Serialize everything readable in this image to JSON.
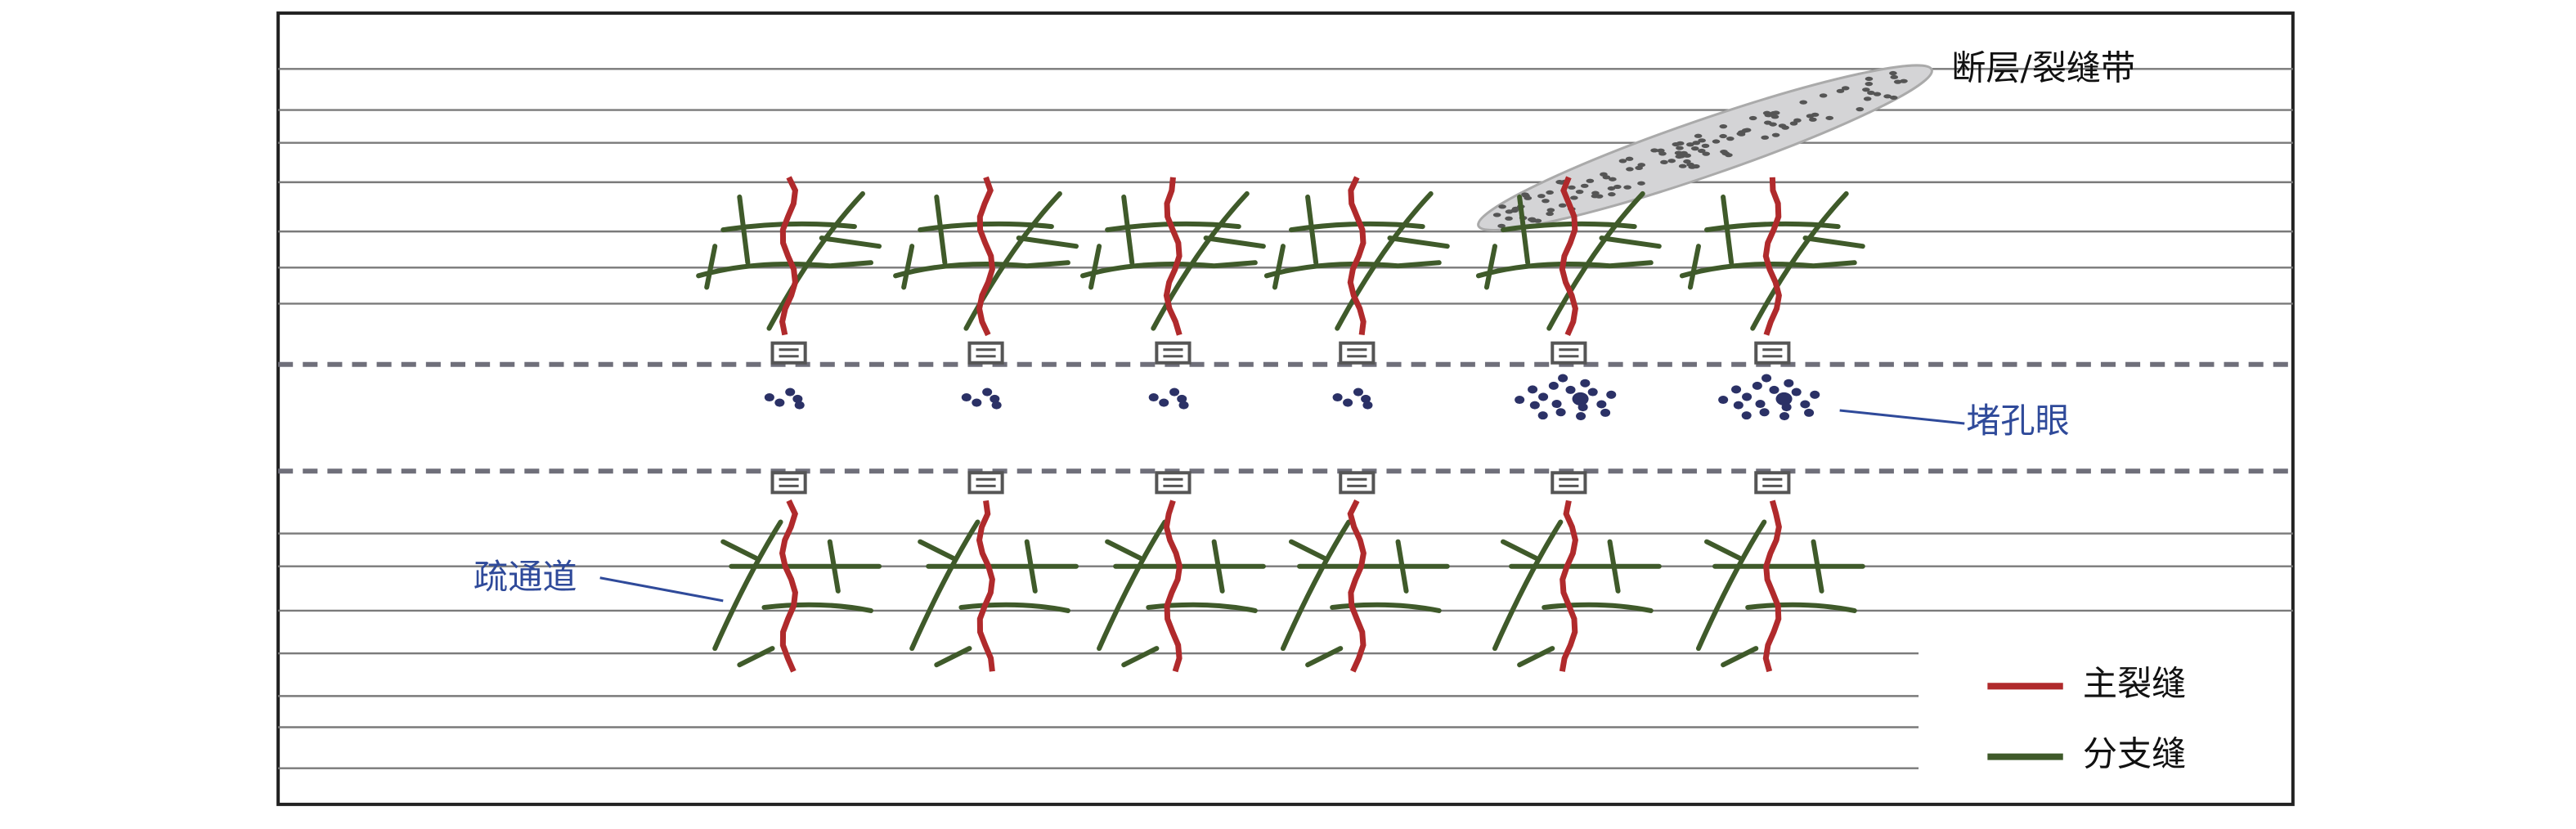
{
  "annotations": {
    "fault_zone": "断层/裂缝带",
    "plugging": "堵孔眼",
    "channel": "疏通道"
  },
  "legend": [
    {
      "label": "主裂缝",
      "color": "#b02a2c"
    },
    {
      "label": "分支缝",
      "color": "#3f5a2a"
    }
  ]
}
